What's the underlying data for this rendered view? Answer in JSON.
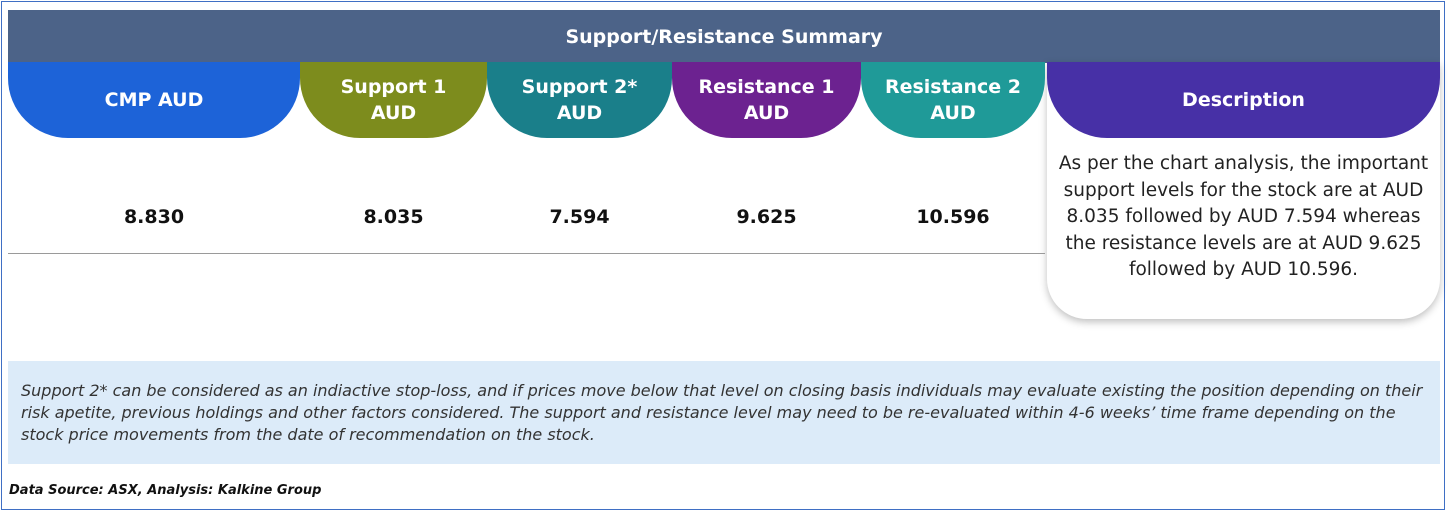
{
  "title": "Support/Resistance Summary",
  "columns": [
    {
      "label": "CMP AUD",
      "value": "8.830",
      "color": "#1d63d8"
    },
    {
      "label": "Support 1 AUD",
      "value": "8.035",
      "color": "#7d8c1d"
    },
    {
      "label": "Support 2* AUD",
      "value": "7.594",
      "color": "#1a7f8a"
    },
    {
      "label": "Resistance 1 AUD",
      "value": "9.625",
      "color": "#6c2290"
    },
    {
      "label": "Resistance 2 AUD",
      "value": "10.596",
      "color": "#1f9a98"
    }
  ],
  "description": {
    "label": "Description",
    "color": "#4730a6",
    "text": "As per the chart analysis, the important support levels for the stock are at AUD 8.035 followed by AUD 7.594 whereas the resistance levels are at AUD 9.625 followed by AUD 10.596."
  },
  "note": "Support 2* can be considered as an indiactive stop-loss, and if prices move below that level on closing basis individuals may evaluate existing the position depending on their risk apetite, previous holdings and other factors considered. The support and resistance level may need to be re-evaluated within 4-6 weeks’ time frame depending on the stock price movements from  the date of recommendation on the stock.",
  "source": "Data Source: ASX, Analysis: Kalkine Group"
}
